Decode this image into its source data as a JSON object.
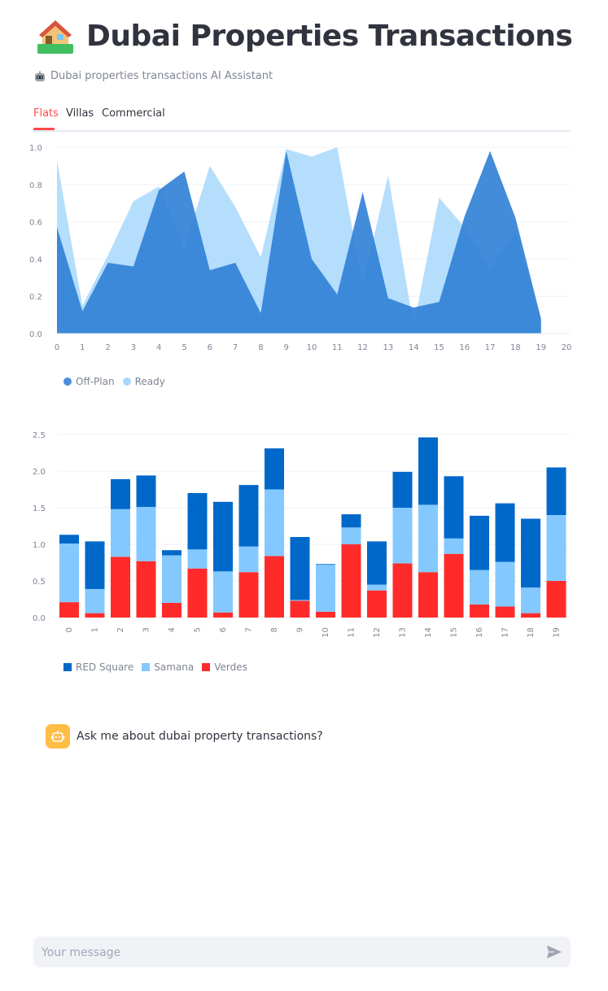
{
  "header": {
    "title": "Dubai Properties Transactions",
    "title_icon": "house-emoji-icon",
    "caption": "Dubai properties transactions AI Assistant",
    "caption_icon": "robot-emoji-icon"
  },
  "tabs": [
    {
      "label": "Flats",
      "active": true
    },
    {
      "label": "Villas",
      "active": false
    },
    {
      "label": "Commercial",
      "active": false
    }
  ],
  "colors": {
    "accent": "#ff4b4b",
    "offplan": "#2f7fd6",
    "ready": "#a7d8fc",
    "red_square": "#0068c9",
    "samana": "#83c9ff",
    "verdes": "#ff2b2b",
    "assistant_avatar": "#ffbd45"
  },
  "chart_data": [
    {
      "type": "area",
      "x": [
        0,
        1,
        2,
        3,
        4,
        5,
        6,
        7,
        8,
        9,
        10,
        11,
        12,
        13,
        14,
        15,
        16,
        17,
        18,
        19
      ],
      "xlim": [
        0,
        20
      ],
      "xticks": [
        "0",
        "1",
        "2",
        "3",
        "4",
        "5",
        "6",
        "7",
        "8",
        "9",
        "10",
        "11",
        "12",
        "13",
        "14",
        "15",
        "16",
        "17",
        "18",
        "19",
        "20"
      ],
      "ylim": [
        0,
        1.0
      ],
      "yticks": [
        "0.0",
        "0.2",
        "0.4",
        "0.6",
        "0.8",
        "1.0"
      ],
      "series": [
        {
          "name": "Off-Plan",
          "values": [
            0.57,
            0.12,
            0.38,
            0.36,
            0.77,
            0.87,
            0.34,
            0.38,
            0.11,
            0.98,
            0.4,
            0.21,
            0.76,
            0.19,
            0.14,
            0.17,
            0.63,
            0.98,
            0.62,
            0.08
          ]
        },
        {
          "name": "Ready",
          "values": [
            0.93,
            0.15,
            0.42,
            0.71,
            0.79,
            0.46,
            0.9,
            0.68,
            0.41,
            0.99,
            0.95,
            1.0,
            0.26,
            0.85,
            0.04,
            0.73,
            0.57,
            0.35,
            0.55,
            0.07
          ]
        }
      ],
      "legend": [
        "Off-Plan",
        "Ready"
      ],
      "legend_position": "bottom-left",
      "grid": true
    },
    {
      "type": "bar",
      "stacked": true,
      "categories": [
        "0",
        "1",
        "2",
        "3",
        "4",
        "5",
        "6",
        "7",
        "8",
        "9",
        "10",
        "11",
        "12",
        "13",
        "14",
        "15",
        "16",
        "17",
        "18",
        "19"
      ],
      "ylim": [
        0,
        2.5
      ],
      "yticks": [
        "0.0",
        "0.5",
        "1.0",
        "1.5",
        "2.0",
        "2.5"
      ],
      "series": [
        {
          "name": "Verdes",
          "values": [
            0.21,
            0.06,
            0.83,
            0.77,
            0.2,
            0.67,
            0.07,
            0.62,
            0.84,
            0.23,
            0.08,
            1.0,
            0.37,
            0.74,
            0.62,
            0.87,
            0.18,
            0.15,
            0.06,
            0.5
          ]
        },
        {
          "name": "Samana",
          "values": [
            0.8,
            0.33,
            0.65,
            0.74,
            0.65,
            0.26,
            0.56,
            0.35,
            0.91,
            0.01,
            0.64,
            0.23,
            0.08,
            0.76,
            0.92,
            0.21,
            0.47,
            0.61,
            0.35,
            0.9
          ]
        },
        {
          "name": "RED Square",
          "values": [
            0.12,
            0.65,
            0.41,
            0.43,
            0.07,
            0.77,
            0.95,
            0.84,
            0.56,
            0.86,
            0.01,
            0.18,
            0.59,
            0.49,
            0.92,
            0.85,
            0.74,
            0.8,
            0.94,
            0.65
          ]
        }
      ],
      "legend": [
        "RED Square",
        "Samana",
        "Verdes"
      ],
      "legend_position": "bottom-left",
      "grid": true
    }
  ],
  "assistant": {
    "message": "Ask me about dubai property transactions?",
    "avatar_icon": "robot-icon"
  },
  "chat": {
    "placeholder": "Your message",
    "send_icon": "send-icon"
  }
}
